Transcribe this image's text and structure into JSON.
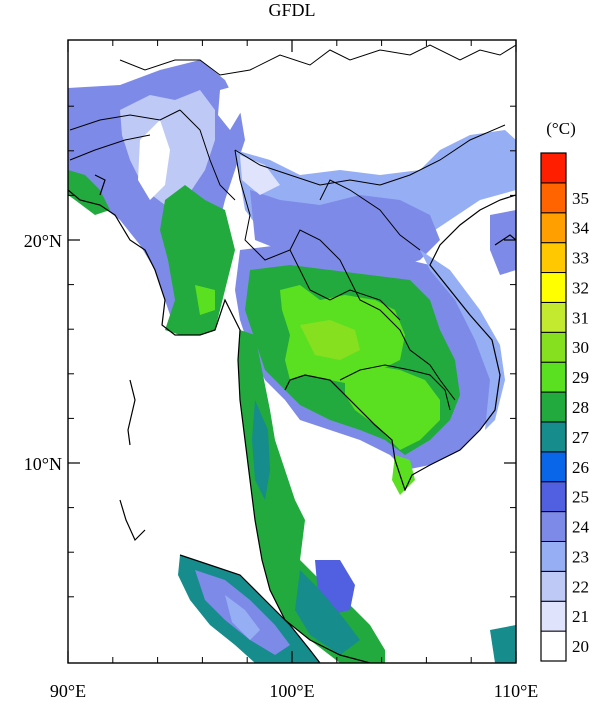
{
  "title": "GFDL",
  "units": "(°C)",
  "x_ticks": [
    {
      "value": 90,
      "label": "90°E"
    },
    {
      "value": 100,
      "label": "100°E"
    },
    {
      "value": 110,
      "label": "110°E"
    }
  ],
  "y_ticks": [
    {
      "value": 20,
      "label": "20°N"
    },
    {
      "value": 10,
      "label": "10°N"
    }
  ],
  "legend": {
    "levels": [
      {
        "label": "20",
        "color": "#ffffff"
      },
      {
        "label": "21",
        "color": "#dfe3fb"
      },
      {
        "label": "22",
        "color": "#bfc9f6"
      },
      {
        "label": "23",
        "color": "#96aef4"
      },
      {
        "label": "24",
        "color": "#7d8ae8"
      },
      {
        "label": "25",
        "color": "#5060e0"
      },
      {
        "label": "26",
        "color": "#0a66e8"
      },
      {
        "label": "27",
        "color": "#168c8c"
      },
      {
        "label": "28",
        "color": "#22aa3e"
      },
      {
        "label": "29",
        "color": "#5ae020"
      },
      {
        "label": "30",
        "color": "#86e020"
      },
      {
        "label": "31",
        "color": "#c4ea30"
      },
      {
        "label": "32",
        "color": "#ffff00"
      },
      {
        "label": "33",
        "color": "#ffc800"
      },
      {
        "label": "34",
        "color": "#ffa000"
      },
      {
        "label": "35",
        "color": "#ff6400"
      },
      {
        "label": "",
        "color": "#ff1e00"
      }
    ]
  }
}
